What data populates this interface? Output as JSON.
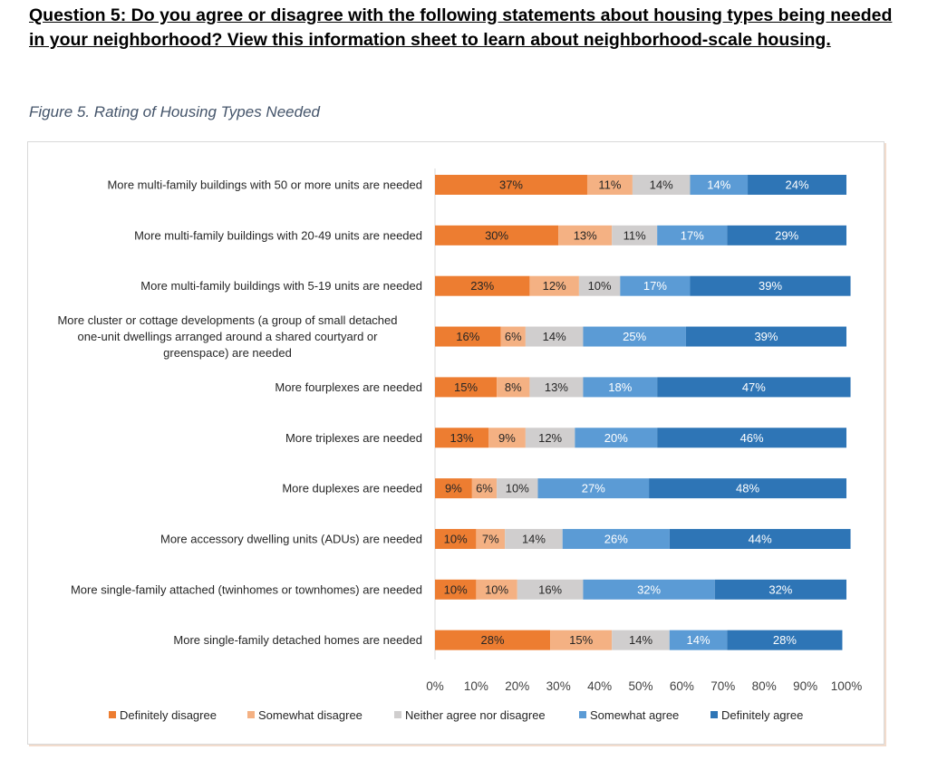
{
  "question": "Question 5: Do you agree or disagree with the following statements about housing types being needed in your neighborhood? View this information sheet to learn about neighborhood-scale housing.",
  "caption": "Figure 5. Rating of Housing Types Needed",
  "colors": {
    "Definitely disagree": "#ed7d31",
    "Somewhat disagree": "#f4b183",
    "Neither agree nor disagree": "#d0cece",
    "Somewhat agree": "#5b9bd5",
    "Definitely agree": "#2e75b6"
  },
  "chart_data": {
    "type": "bar",
    "orientation": "horizontal",
    "stacked": "100%",
    "title": "Figure 5. Rating of Housing Types Needed",
    "categories": [
      [
        "More multi-family buildings with 50 or more units are needed"
      ],
      [
        "More multi-family buildings with 20-49 units are needed"
      ],
      [
        "More multi-family buildings with 5-19 units are needed"
      ],
      [
        "More cluster or cottage developments (a group of small detached",
        "one-unit dwellings arranged around a shared courtyard or",
        "greenspace) are needed"
      ],
      [
        "More fourplexes are needed"
      ],
      [
        "More triplexes are needed"
      ],
      [
        "More duplexes are needed"
      ],
      [
        "More accessory dwelling units (ADUs) are needed"
      ],
      [
        "More single-family attached (twinhomes or townhomes) are needed"
      ],
      [
        "More single-family detached homes are needed"
      ]
    ],
    "series": [
      {
        "name": "Definitely disagree",
        "values": [
          37,
          30,
          23,
          16,
          15,
          13,
          9,
          10,
          10,
          28
        ]
      },
      {
        "name": "Somewhat disagree",
        "values": [
          11,
          13,
          12,
          6,
          8,
          9,
          6,
          7,
          10,
          15
        ]
      },
      {
        "name": "Neither agree nor disagree",
        "values": [
          14,
          11,
          10,
          14,
          13,
          12,
          10,
          14,
          16,
          14
        ]
      },
      {
        "name": "Somewhat agree",
        "values": [
          14,
          17,
          17,
          25,
          18,
          20,
          27,
          26,
          32,
          14
        ]
      },
      {
        "name": "Definitely agree",
        "values": [
          24,
          29,
          39,
          39,
          47,
          46,
          48,
          44,
          32,
          28
        ]
      }
    ],
    "xlim": [
      0,
      100
    ],
    "xticks": [
      "0%",
      "10%",
      "20%",
      "30%",
      "40%",
      "50%",
      "60%",
      "70%",
      "80%",
      "90%",
      "100%"
    ],
    "legend_position": "bottom",
    "grid": false
  }
}
